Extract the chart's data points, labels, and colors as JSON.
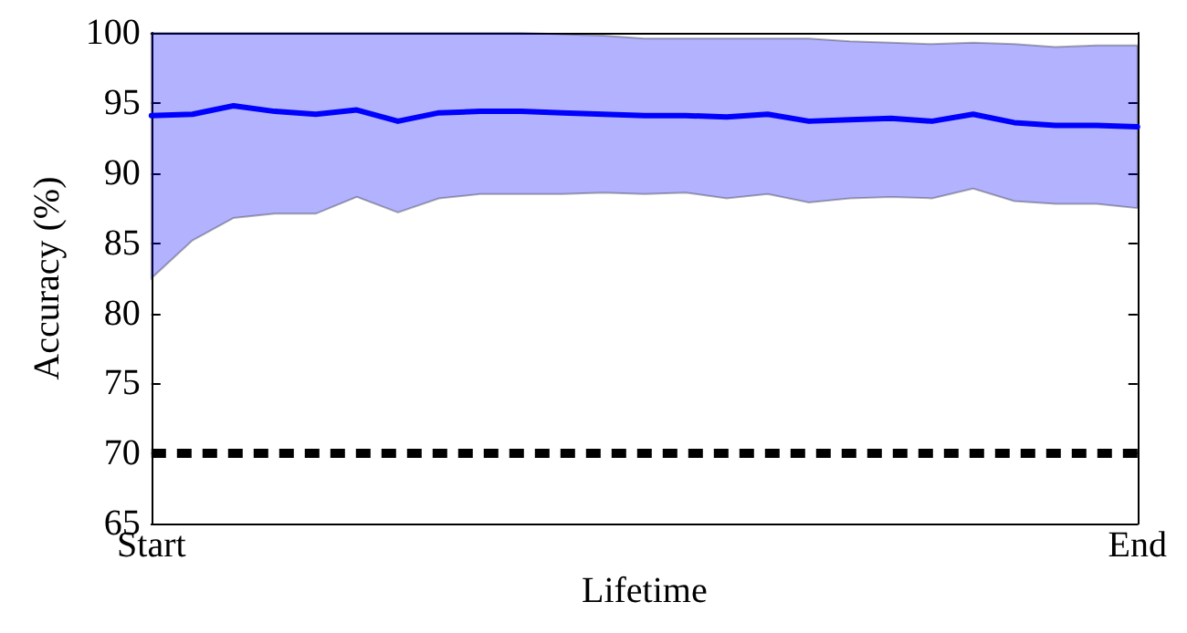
{
  "chart_data": {
    "type": "line",
    "xlabel": "Lifetime",
    "ylabel": "Accuracy (%)",
    "categories": [
      "Start",
      null,
      null,
      null,
      null,
      null,
      null,
      null,
      null,
      null,
      null,
      null,
      null,
      null,
      null,
      null,
      null,
      null,
      null,
      null,
      null,
      null,
      null,
      null,
      "End"
    ],
    "series": [
      {
        "color": "#0000ff",
        "values": [
          94.1,
          94.2,
          94.8,
          94.4,
          94.2,
          94.5,
          93.7,
          94.3,
          94.4,
          94.4,
          94.3,
          94.2,
          94.1,
          94.1,
          94.0,
          94.2,
          93.7,
          93.8,
          93.9,
          93.7,
          94.2,
          93.6,
          93.4,
          93.4,
          93.3
        ],
        "lower": [
          82.5,
          85.2,
          86.8,
          87.1,
          87.1,
          88.3,
          87.2,
          88.2,
          88.5,
          88.5,
          88.5,
          88.6,
          88.5,
          88.6,
          88.2,
          88.5,
          87.9,
          88.2,
          88.3,
          88.2,
          88.9,
          88.0,
          87.8,
          87.8,
          87.5
        ],
        "upper": [
          100,
          100,
          100,
          100,
          100,
          100,
          100,
          100,
          100,
          100,
          99.9,
          99.8,
          99.6,
          99.6,
          99.6,
          99.6,
          99.6,
          99.4,
          99.3,
          99.2,
          99.3,
          99.2,
          99.0,
          99.1,
          99.1
        ]
      }
    ],
    "ylim": [
      65,
      100
    ],
    "yticks": [
      65,
      70,
      75,
      80,
      85,
      90,
      95,
      100
    ],
    "ref_lines": [
      {
        "axis": "y",
        "value": 70,
        "color": "#000000",
        "line_style": "dashed"
      }
    ],
    "grid": false,
    "marker": "none",
    "line_style": "solid"
  }
}
